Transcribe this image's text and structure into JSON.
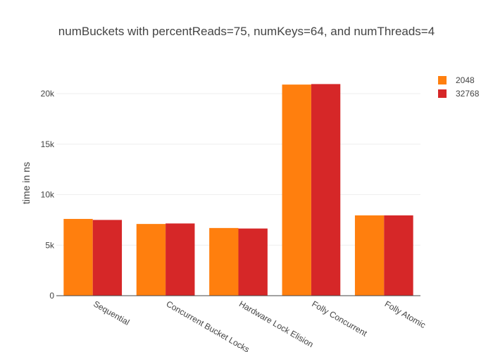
{
  "chart_data": {
    "type": "bar",
    "title": "numBuckets with percentReads=75, numKeys=64, and numThreads=4",
    "xlabel": "",
    "ylabel": "time in ns",
    "categories": [
      "Sequential",
      "Concurrent Bucket Locks",
      "Hardware Lock Elision",
      "Folly Concurrent",
      "Folly Atomic"
    ],
    "series": [
      {
        "name": "2048",
        "color": "#ff7f0e",
        "values": [
          7600,
          7100,
          6700,
          20900,
          7950
        ]
      },
      {
        "name": "32768",
        "color": "#d62728",
        "values": [
          7500,
          7150,
          6650,
          20950,
          7950
        ]
      }
    ],
    "ylim": [
      0,
      23000
    ],
    "yticks": [
      {
        "value": 0,
        "label": "0"
      },
      {
        "value": 5000,
        "label": "5k"
      },
      {
        "value": 10000,
        "label": "10k"
      },
      {
        "value": 15000,
        "label": "15k"
      },
      {
        "value": 20000,
        "label": "20k"
      }
    ],
    "grid": true,
    "legend_position": "top-right"
  }
}
